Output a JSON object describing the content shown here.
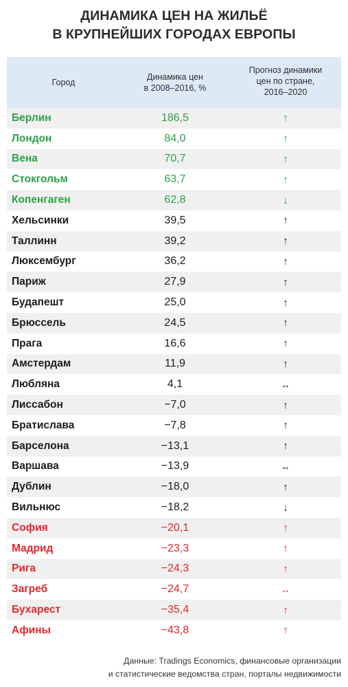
{
  "title": {
    "line1": "ДИНАМИКА ЦЕН НА ЖИЛЬЁ",
    "line2": "В КРУПНЕЙШИХ ГОРОДАХ ЕВРОПЫ"
  },
  "header": {
    "city": "Город",
    "change_line1": "Динамика цен",
    "change_line2": "в 2008–2016, %",
    "forecast_line1": "Прогноз динамики",
    "forecast_line2": "цен по стране,",
    "forecast_line3": "2016–2020"
  },
  "colors": {
    "header_bg": "#dde9f5",
    "stripe_bg": "#f0f0f0",
    "green": "#2ea04a",
    "red": "#e0272d",
    "black": "#1c1c1c"
  },
  "chart_data": {
    "type": "table",
    "title": "ДИНАМИКА ЦЕН НА ЖИЛЬЁ В КРУПНЕЙШИХ ГОРОДАХ ЕВРОПЫ",
    "columns": [
      "Город",
      "Динамика цен в 2008–2016, %",
      "Прогноз динамики цен по стране, 2016–2020"
    ],
    "rows": [
      {
        "city": "Берлин",
        "value": "186,5",
        "arrow": "↑",
        "group": "green"
      },
      {
        "city": "Лондон",
        "value": "84,0",
        "arrow": "↑",
        "group": "green"
      },
      {
        "city": "Вена",
        "value": "70,7",
        "arrow": "↑",
        "group": "green"
      },
      {
        "city": "Стокгольм",
        "value": "63,7",
        "arrow": "↑",
        "group": "green"
      },
      {
        "city": "Копенгаген",
        "value": "62,8",
        "arrow": "↓",
        "group": "green"
      },
      {
        "city": "Хельсинки",
        "value": "39,5",
        "arrow": "↑",
        "group": "black"
      },
      {
        "city": "Таллинн",
        "value": "39,2",
        "arrow": "↑",
        "group": "black"
      },
      {
        "city": "Люксембург",
        "value": "36,2",
        "arrow": "↑",
        "group": "black"
      },
      {
        "city": "Париж",
        "value": "27,9",
        "arrow": "↑",
        "group": "black"
      },
      {
        "city": "Будапешт",
        "value": "25,0",
        "arrow": "↑",
        "group": "black"
      },
      {
        "city": "Брюссель",
        "value": "24,5",
        "arrow": "↑",
        "group": "black"
      },
      {
        "city": "Прага",
        "value": "16,6",
        "arrow": "↑",
        "group": "black"
      },
      {
        "city": "Амстердам",
        "value": "11,9",
        "arrow": "↑",
        "group": "black"
      },
      {
        "city": "Любляна",
        "value": "4,1",
        "arrow": "↔",
        "group": "black"
      },
      {
        "city": "Лиссабон",
        "value": "−7,0",
        "arrow": "↑",
        "group": "black"
      },
      {
        "city": "Братислава",
        "value": "−7,8",
        "arrow": "↑",
        "group": "black"
      },
      {
        "city": "Барселона",
        "value": "−13,1",
        "arrow": "↑",
        "group": "black"
      },
      {
        "city": "Варшава",
        "value": "−13,9",
        "arrow": "↔",
        "group": "black"
      },
      {
        "city": "Дублин",
        "value": "−18,0",
        "arrow": "↑",
        "group": "black"
      },
      {
        "city": "Вильнюс",
        "value": "−18,2",
        "arrow": "↓",
        "group": "black"
      },
      {
        "city": "София",
        "value": "−20,1",
        "arrow": "↑",
        "group": "red"
      },
      {
        "city": "Мадрид",
        "value": "−23,3",
        "arrow": "↑",
        "group": "red"
      },
      {
        "city": "Рига",
        "value": "−24,3",
        "arrow": "↑",
        "group": "red"
      },
      {
        "city": "Загреб",
        "value": "−24,7",
        "arrow": "↔",
        "group": "red"
      },
      {
        "city": "Бухарест",
        "value": "−35,4",
        "arrow": "↑",
        "group": "red"
      },
      {
        "city": "Афины",
        "value": "−43,8",
        "arrow": "↑",
        "group": "red"
      }
    ]
  },
  "source": {
    "line1": "Данные: Tradings Economics, финансовые организации",
    "line2": "и статистические ведомства стран, порталы недвижимости"
  }
}
